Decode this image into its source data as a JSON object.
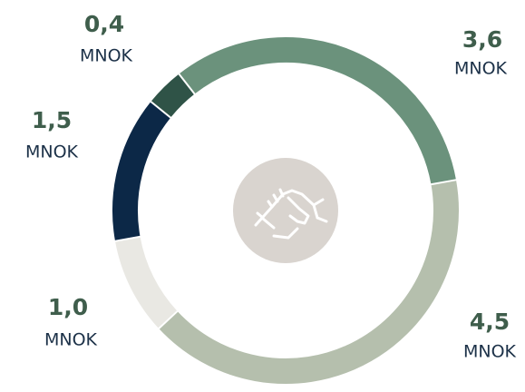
{
  "chart_data": {
    "type": "donut",
    "values": [
      3.6,
      4.5,
      1.0,
      1.5,
      0.4
    ],
    "value_labels": [
      "3,6",
      "4,5",
      "1,0",
      "1,5",
      "0,4"
    ],
    "unit": "MNOK",
    "colors": [
      "#6b927c",
      "#b5bfad",
      "#e9e8e3",
      "#0c2847",
      "#2f5347"
    ]
  }
}
